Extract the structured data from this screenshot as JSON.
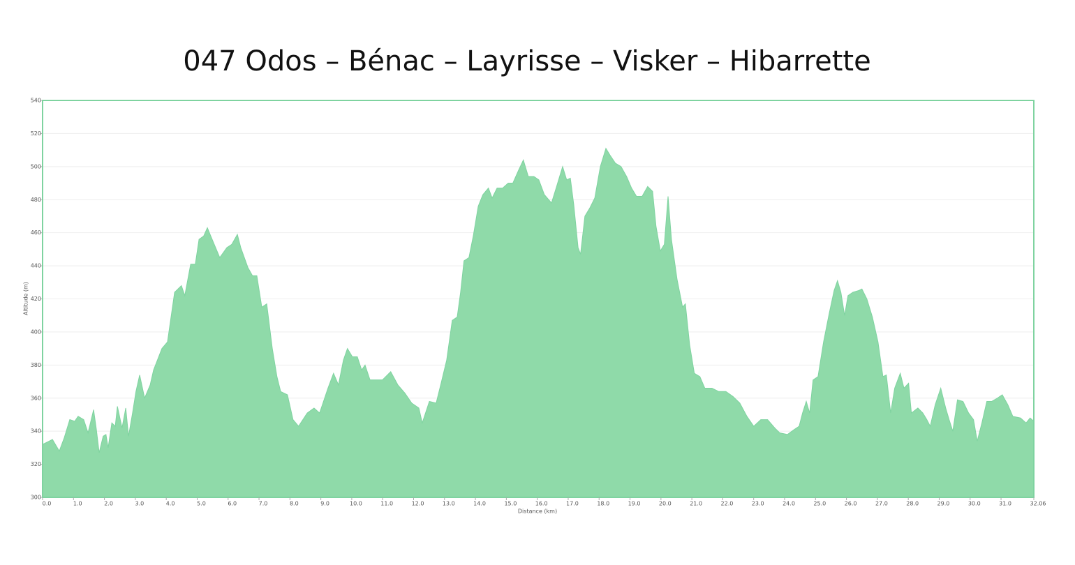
{
  "chart_data": {
    "type": "area",
    "title": "047 Odos – Bénac – Layrisse – Visker – Hibarrette",
    "x_label": "Distance   (km)",
    "y_label": "Altitude (m)",
    "xlim": [
      0,
      32.06
    ],
    "ylim": [
      300,
      540
    ],
    "yticks": [
      300,
      320,
      340,
      360,
      380,
      400,
      420,
      440,
      460,
      480,
      500,
      520,
      540
    ],
    "xticks": [
      {
        "value": 0,
        "label": "0.0"
      },
      {
        "value": 1,
        "label": "1.0"
      },
      {
        "value": 2,
        "label": "2.0"
      },
      {
        "value": 3,
        "label": "3.0"
      },
      {
        "value": 4,
        "label": "4.0"
      },
      {
        "value": 5,
        "label": "5.0"
      },
      {
        "value": 6,
        "label": "6.0"
      },
      {
        "value": 7,
        "label": "7.0"
      },
      {
        "value": 8,
        "label": "8.0"
      },
      {
        "value": 9,
        "label": "9.0"
      },
      {
        "value": 10,
        "label": "10.0"
      },
      {
        "value": 11,
        "label": "11.0"
      },
      {
        "value": 12,
        "label": "12.0"
      },
      {
        "value": 13,
        "label": "13.0"
      },
      {
        "value": 14,
        "label": "14.0"
      },
      {
        "value": 15,
        "label": "15.0"
      },
      {
        "value": 16,
        "label": "16.0"
      },
      {
        "value": 17,
        "label": "17.0"
      },
      {
        "value": 18,
        "label": "18.0"
      },
      {
        "value": 19,
        "label": "19.0"
      },
      {
        "value": 20,
        "label": "20.0"
      },
      {
        "value": 21,
        "label": "21.0"
      },
      {
        "value": 22,
        "label": "22.0"
      },
      {
        "value": 23,
        "label": "23.0"
      },
      {
        "value": 24,
        "label": "24.0"
      },
      {
        "value": 25,
        "label": "25.0"
      },
      {
        "value": 26,
        "label": "26.0"
      },
      {
        "value": 27,
        "label": "27.0"
      },
      {
        "value": 28,
        "label": "28.0"
      },
      {
        "value": 29,
        "label": "29.0"
      },
      {
        "value": 30,
        "label": "30.0"
      },
      {
        "value": 31,
        "label": "31.0"
      },
      {
        "value": 32.06,
        "label": "32.06"
      }
    ],
    "grid": true,
    "color": "#8fdaa9",
    "line_color": "#7fd3a0",
    "x": [
      0,
      0.32,
      0.54,
      0.7,
      0.88,
      1.04,
      1.15,
      1.33,
      1.47,
      1.65,
      1.74,
      1.83,
      1.96,
      2.05,
      2.12,
      2.24,
      2.35,
      2.42,
      2.57,
      2.69,
      2.78,
      2.91,
      3.02,
      3.14,
      3.3,
      3.48,
      3.59,
      3.86,
      4.04,
      4.27,
      4.49,
      4.6,
      4.79,
      4.94,
      5.06,
      5.21,
      5.33,
      5.44,
      5.73,
      5.96,
      6.12,
      6.3,
      6.41,
      6.64,
      6.79,
      6.93,
      7.09,
      7.25,
      7.43,
      7.58,
      7.7,
      7.92,
      8.1,
      8.28,
      8.56,
      8.78,
      8.96,
      9.05,
      9.23,
      9.41,
      9.57,
      9.73,
      9.86,
      10.02,
      10.18,
      10.32,
      10.43,
      10.59,
      10.81,
      10.99,
      11.26,
      11.49,
      11.72,
      11.94,
      12.17,
      12.28,
      12.51,
      12.73,
      12.89,
      13.07,
      13.25,
      13.41,
      13.52,
      13.63,
      13.79,
      13.93,
      14.09,
      14.24,
      14.42,
      14.54,
      14.7,
      14.88,
      15.06,
      15.21,
      15.4,
      15.55,
      15.71,
      15.89,
      16.05,
      16.23,
      16.46,
      16.61,
      16.82,
      16.95,
      17.07,
      17.18,
      17.32,
      17.4,
      17.54,
      17.7,
      17.86,
      18.04,
      18.22,
      18.35,
      18.53,
      18.71,
      18.89,
      19.05,
      19.21,
      19.39,
      19.57,
      19.73,
      19.84,
      19.98,
      20.11,
      20.23,
      20.34,
      20.52,
      20.7,
      20.79,
      20.93,
      21.08,
      21.26,
      21.42,
      21.65,
      21.87,
      22.1,
      22.33,
      22.55,
      22.78,
      23,
      23.23,
      23.45,
      23.68,
      23.84,
      24.09,
      24.31,
      24.47,
      24.58,
      24.7,
      24.81,
      24.92,
      25.08,
      25.26,
      25.44,
      25.6,
      25.71,
      25.82,
      25.94,
      26.05,
      26.21,
      26.39,
      26.5,
      26.66,
      26.84,
      27.02,
      27.18,
      27.29,
      27.43,
      27.56,
      27.74,
      27.86,
      28.01,
      28.1,
      28.31,
      28.47,
      28.6,
      28.71,
      28.87,
      29.05,
      29.21,
      29.32,
      29.44,
      29.59,
      29.77,
      29.95,
      30.11,
      30.23,
      30.38,
      30.54,
      30.7,
      30.88,
      31.04,
      31.22,
      31.38,
      31.63,
      31.81,
      31.94,
      32.06
    ],
    "values": [
      332,
      335,
      328,
      336,
      347,
      346,
      349,
      347,
      339,
      353,
      341,
      327,
      337,
      338,
      330,
      345,
      343,
      355,
      342,
      354,
      337,
      351,
      364,
      374,
      360,
      368,
      377,
      390,
      394,
      424,
      428,
      422,
      441,
      441,
      456,
      458,
      463,
      458,
      445,
      451,
      453,
      459,
      451,
      439,
      434,
      434,
      415,
      417,
      390,
      373,
      364,
      362,
      347,
      343,
      351,
      354,
      351,
      356,
      366,
      375,
      368,
      383,
      390,
      385,
      385,
      377,
      380,
      371,
      371,
      371,
      376,
      368,
      363,
      357,
      354,
      345,
      358,
      357,
      369,
      383,
      407,
      409,
      424,
      443,
      445,
      458,
      476,
      483,
      487,
      481,
      487,
      487,
      490,
      490,
      498,
      504,
      494,
      494,
      492,
      483,
      478,
      487,
      500,
      492,
      493,
      477,
      451,
      447,
      470,
      475,
      481,
      500,
      511,
      507,
      502,
      500,
      494,
      487,
      482,
      482,
      488,
      485,
      464,
      449,
      453,
      482,
      456,
      432,
      415,
      417,
      392,
      375,
      373,
      366,
      366,
      364,
      364,
      361,
      357,
      349,
      343,
      347,
      347,
      342,
      339,
      338,
      341,
      343,
      351,
      358,
      351,
      371,
      373,
      394,
      411,
      425,
      431,
      424,
      410,
      422,
      424,
      425,
      426,
      420,
      409,
      394,
      373,
      374,
      351,
      366,
      375,
      366,
      369,
      351,
      354,
      351,
      347,
      343,
      356,
      366,
      354,
      347,
      340,
      359,
      358,
      351,
      347,
      334,
      345,
      358,
      358,
      360,
      362,
      356,
      349,
      348,
      345,
      348,
      346
    ]
  }
}
